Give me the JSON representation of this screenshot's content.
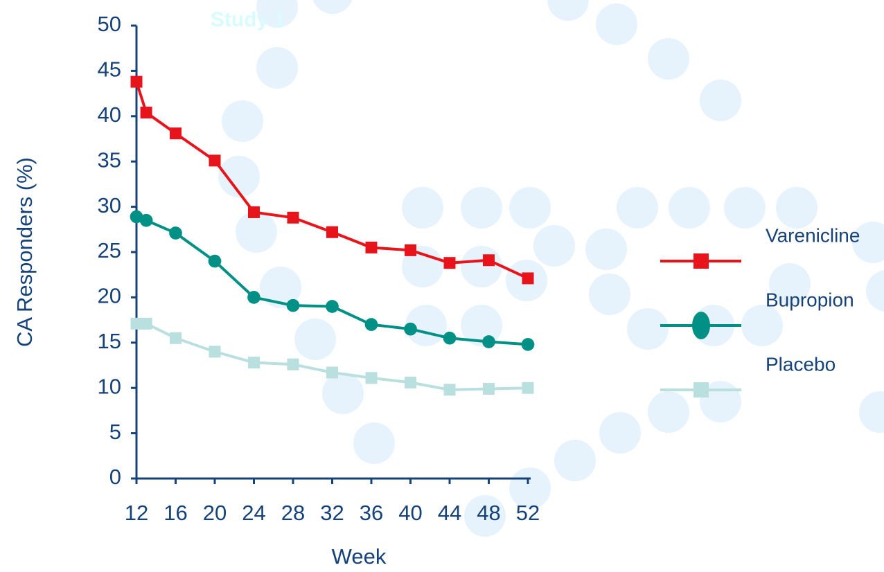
{
  "chart_data": {
    "type": "line",
    "title": "Study 1",
    "x_label": "Week",
    "y_label": "CA Responders (%)",
    "x": [
      12,
      13,
      16,
      20,
      24,
      28,
      32,
      36,
      40,
      44,
      48,
      52
    ],
    "xlim": [
      12,
      52
    ],
    "xticks": [
      12,
      16,
      20,
      24,
      28,
      32,
      36,
      40,
      44,
      48,
      52
    ],
    "ylim": [
      0,
      50
    ],
    "yticks": [
      0,
      5,
      10,
      15,
      20,
      25,
      30,
      35,
      40,
      45,
      50
    ],
    "legend": "right",
    "series": [
      {
        "name": "Varenicline",
        "color": "#e8141c",
        "marker": "square",
        "values": [
          43.8,
          40.4,
          38.1,
          35.1,
          29.4,
          28.8,
          27.2,
          25.5,
          25.2,
          23.8,
          24.1,
          22.1
        ]
      },
      {
        "name": "Bupropion",
        "color": "#009085",
        "marker": "circle",
        "values": [
          28.9,
          28.5,
          27.1,
          24.0,
          20.0,
          19.1,
          19.0,
          17.0,
          16.5,
          15.5,
          15.1,
          14.8
        ]
      },
      {
        "name": "Placebo",
        "color": "#b9dfdf",
        "marker": "square",
        "values": [
          17.1,
          17.1,
          15.5,
          14.0,
          12.8,
          12.6,
          11.7,
          11.1,
          10.6,
          9.8,
          9.9,
          10.0
        ]
      }
    ]
  }
}
